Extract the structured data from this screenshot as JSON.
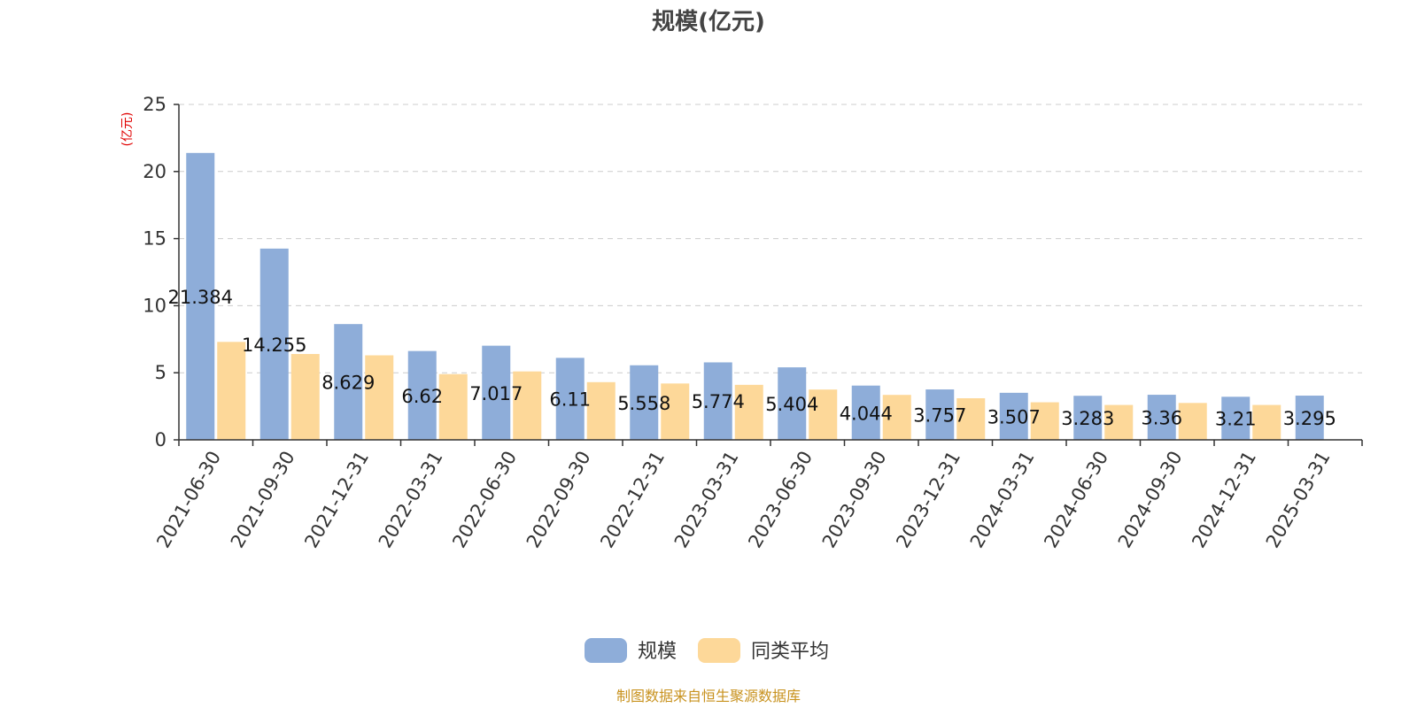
{
  "chart_data": {
    "type": "bar",
    "title": "规模(亿元)",
    "y_unit_label": "(亿元)",
    "categories": [
      "2021-06-30",
      "2021-09-30",
      "2021-12-31",
      "2022-03-31",
      "2022-06-30",
      "2022-09-30",
      "2022-12-31",
      "2023-03-31",
      "2023-06-30",
      "2023-09-30",
      "2023-12-31",
      "2024-03-31",
      "2024-06-30",
      "2024-09-30",
      "2024-12-31",
      "2025-03-31"
    ],
    "series": [
      {
        "name": "规模",
        "color": "#8eadd9",
        "values": [
          21.384,
          14.255,
          8.629,
          6.62,
          7.017,
          6.11,
          5.558,
          5.774,
          5.404,
          4.044,
          3.757,
          3.507,
          3.283,
          3.36,
          3.21,
          3.295
        ],
        "labels": [
          "21.384",
          "14.255",
          "8.629",
          "6.62",
          "7.017",
          "6.11",
          "5.558",
          "5.774",
          "5.404",
          "4.044",
          "3.757",
          "3.507",
          "3.283",
          "3.36",
          "3.21",
          "3.295"
        ]
      },
      {
        "name": "同类平均",
        "color": "#fdd899",
        "values": [
          7.3,
          6.4,
          6.3,
          4.9,
          5.1,
          4.3,
          4.2,
          4.1,
          3.75,
          3.35,
          3.1,
          2.8,
          2.6,
          2.75,
          2.6,
          null
        ]
      }
    ],
    "ylim": [
      0,
      25
    ],
    "yticks": [
      0,
      5,
      10,
      15,
      20,
      25
    ],
    "grid": true,
    "legend_position": "bottom-center"
  },
  "source_note": "制图数据来自恒生聚源数据库"
}
